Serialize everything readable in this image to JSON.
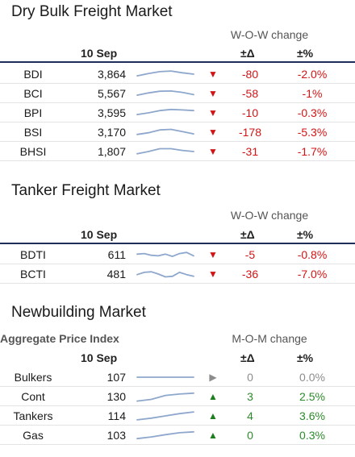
{
  "dry_bulk": {
    "title": "Dry Bulk Freight Market",
    "change_label": "W-O-W change",
    "date_label": "10 Sep",
    "abs_label": "±Δ",
    "pct_label": "±%",
    "rows": [
      {
        "name": "BDI",
        "value": "3,864",
        "abs": "-80",
        "pct": "-2.0%",
        "dir": "down",
        "spark": [
          0.35,
          0.55,
          0.72,
          0.78,
          0.62,
          0.5
        ]
      },
      {
        "name": "BCI",
        "value": "5,567",
        "abs": "-58",
        "pct": "-1%",
        "dir": "down",
        "spark": [
          0.35,
          0.55,
          0.7,
          0.72,
          0.6,
          0.4
        ]
      },
      {
        "name": "BPI",
        "value": "3,595",
        "abs": "-10",
        "pct": "-0.3%",
        "dir": "down",
        "spark": [
          0.35,
          0.5,
          0.7,
          0.8,
          0.76,
          0.7
        ]
      },
      {
        "name": "BSI",
        "value": "3,170",
        "abs": "-178",
        "pct": "-5.3%",
        "dir": "down",
        "spark": [
          0.3,
          0.45,
          0.7,
          0.75,
          0.55,
          0.35
        ]
      },
      {
        "name": "BHSI",
        "value": "1,807",
        "abs": "-31",
        "pct": "-1.7%",
        "dir": "down",
        "spark": [
          0.3,
          0.5,
          0.75,
          0.75,
          0.6,
          0.5
        ]
      }
    ]
  },
  "tanker": {
    "title": "Tanker Freight Market",
    "change_label": "W-O-W change",
    "date_label": "10 Sep",
    "abs_label": "±Δ",
    "pct_label": "±%",
    "rows": [
      {
        "name": "BDTI",
        "value": "611",
        "abs": "-5",
        "pct": "-0.8%",
        "dir": "down",
        "spark": [
          0.55,
          0.6,
          0.45,
          0.4,
          0.55,
          0.35,
          0.6,
          0.7,
          0.4
        ]
      },
      {
        "name": "BCTI",
        "value": "481",
        "abs": "-36",
        "pct": "-7.0%",
        "dir": "down",
        "spark": [
          0.45,
          0.65,
          0.7,
          0.5,
          0.25,
          0.3,
          0.65,
          0.45,
          0.3
        ]
      }
    ]
  },
  "newbuilding": {
    "title": "Newbuilding Market",
    "index_title": "Aggregate Price Index",
    "change_label": "M-O-M change",
    "date_label": "10 Sep",
    "abs_label": "±Δ",
    "pct_label": "±%",
    "rows": [
      {
        "name": "Bulkers",
        "value": "107",
        "abs": "0",
        "pct": "0.0%",
        "dir": "flat",
        "spark": [
          0.5,
          0.5,
          0.5,
          0.5,
          0.5
        ]
      },
      {
        "name": "Cont",
        "value": "130",
        "abs": "3",
        "pct": "2.5%",
        "dir": "up",
        "spark": [
          0.1,
          0.25,
          0.6,
          0.72,
          0.8
        ]
      },
      {
        "name": "Tankers",
        "value": "114",
        "abs": "4",
        "pct": "3.6%",
        "dir": "up",
        "spark": [
          0.15,
          0.3,
          0.5,
          0.7,
          0.85
        ]
      },
      {
        "name": "Gas",
        "value": "103",
        "abs": "0",
        "pct": "0.3%",
        "dir": "up",
        "spark": [
          0.2,
          0.35,
          0.55,
          0.72,
          0.8
        ]
      }
    ]
  },
  "colors": {
    "negative": "#d11515",
    "positive": "#1f7d1f",
    "neutral": "#8c8c8c",
    "spark": "#8ea7cc",
    "rule": "#1f2d5a"
  },
  "icons": {
    "down": "triangle-down-icon",
    "up": "triangle-up-icon",
    "flat": "triangle-right-icon"
  }
}
